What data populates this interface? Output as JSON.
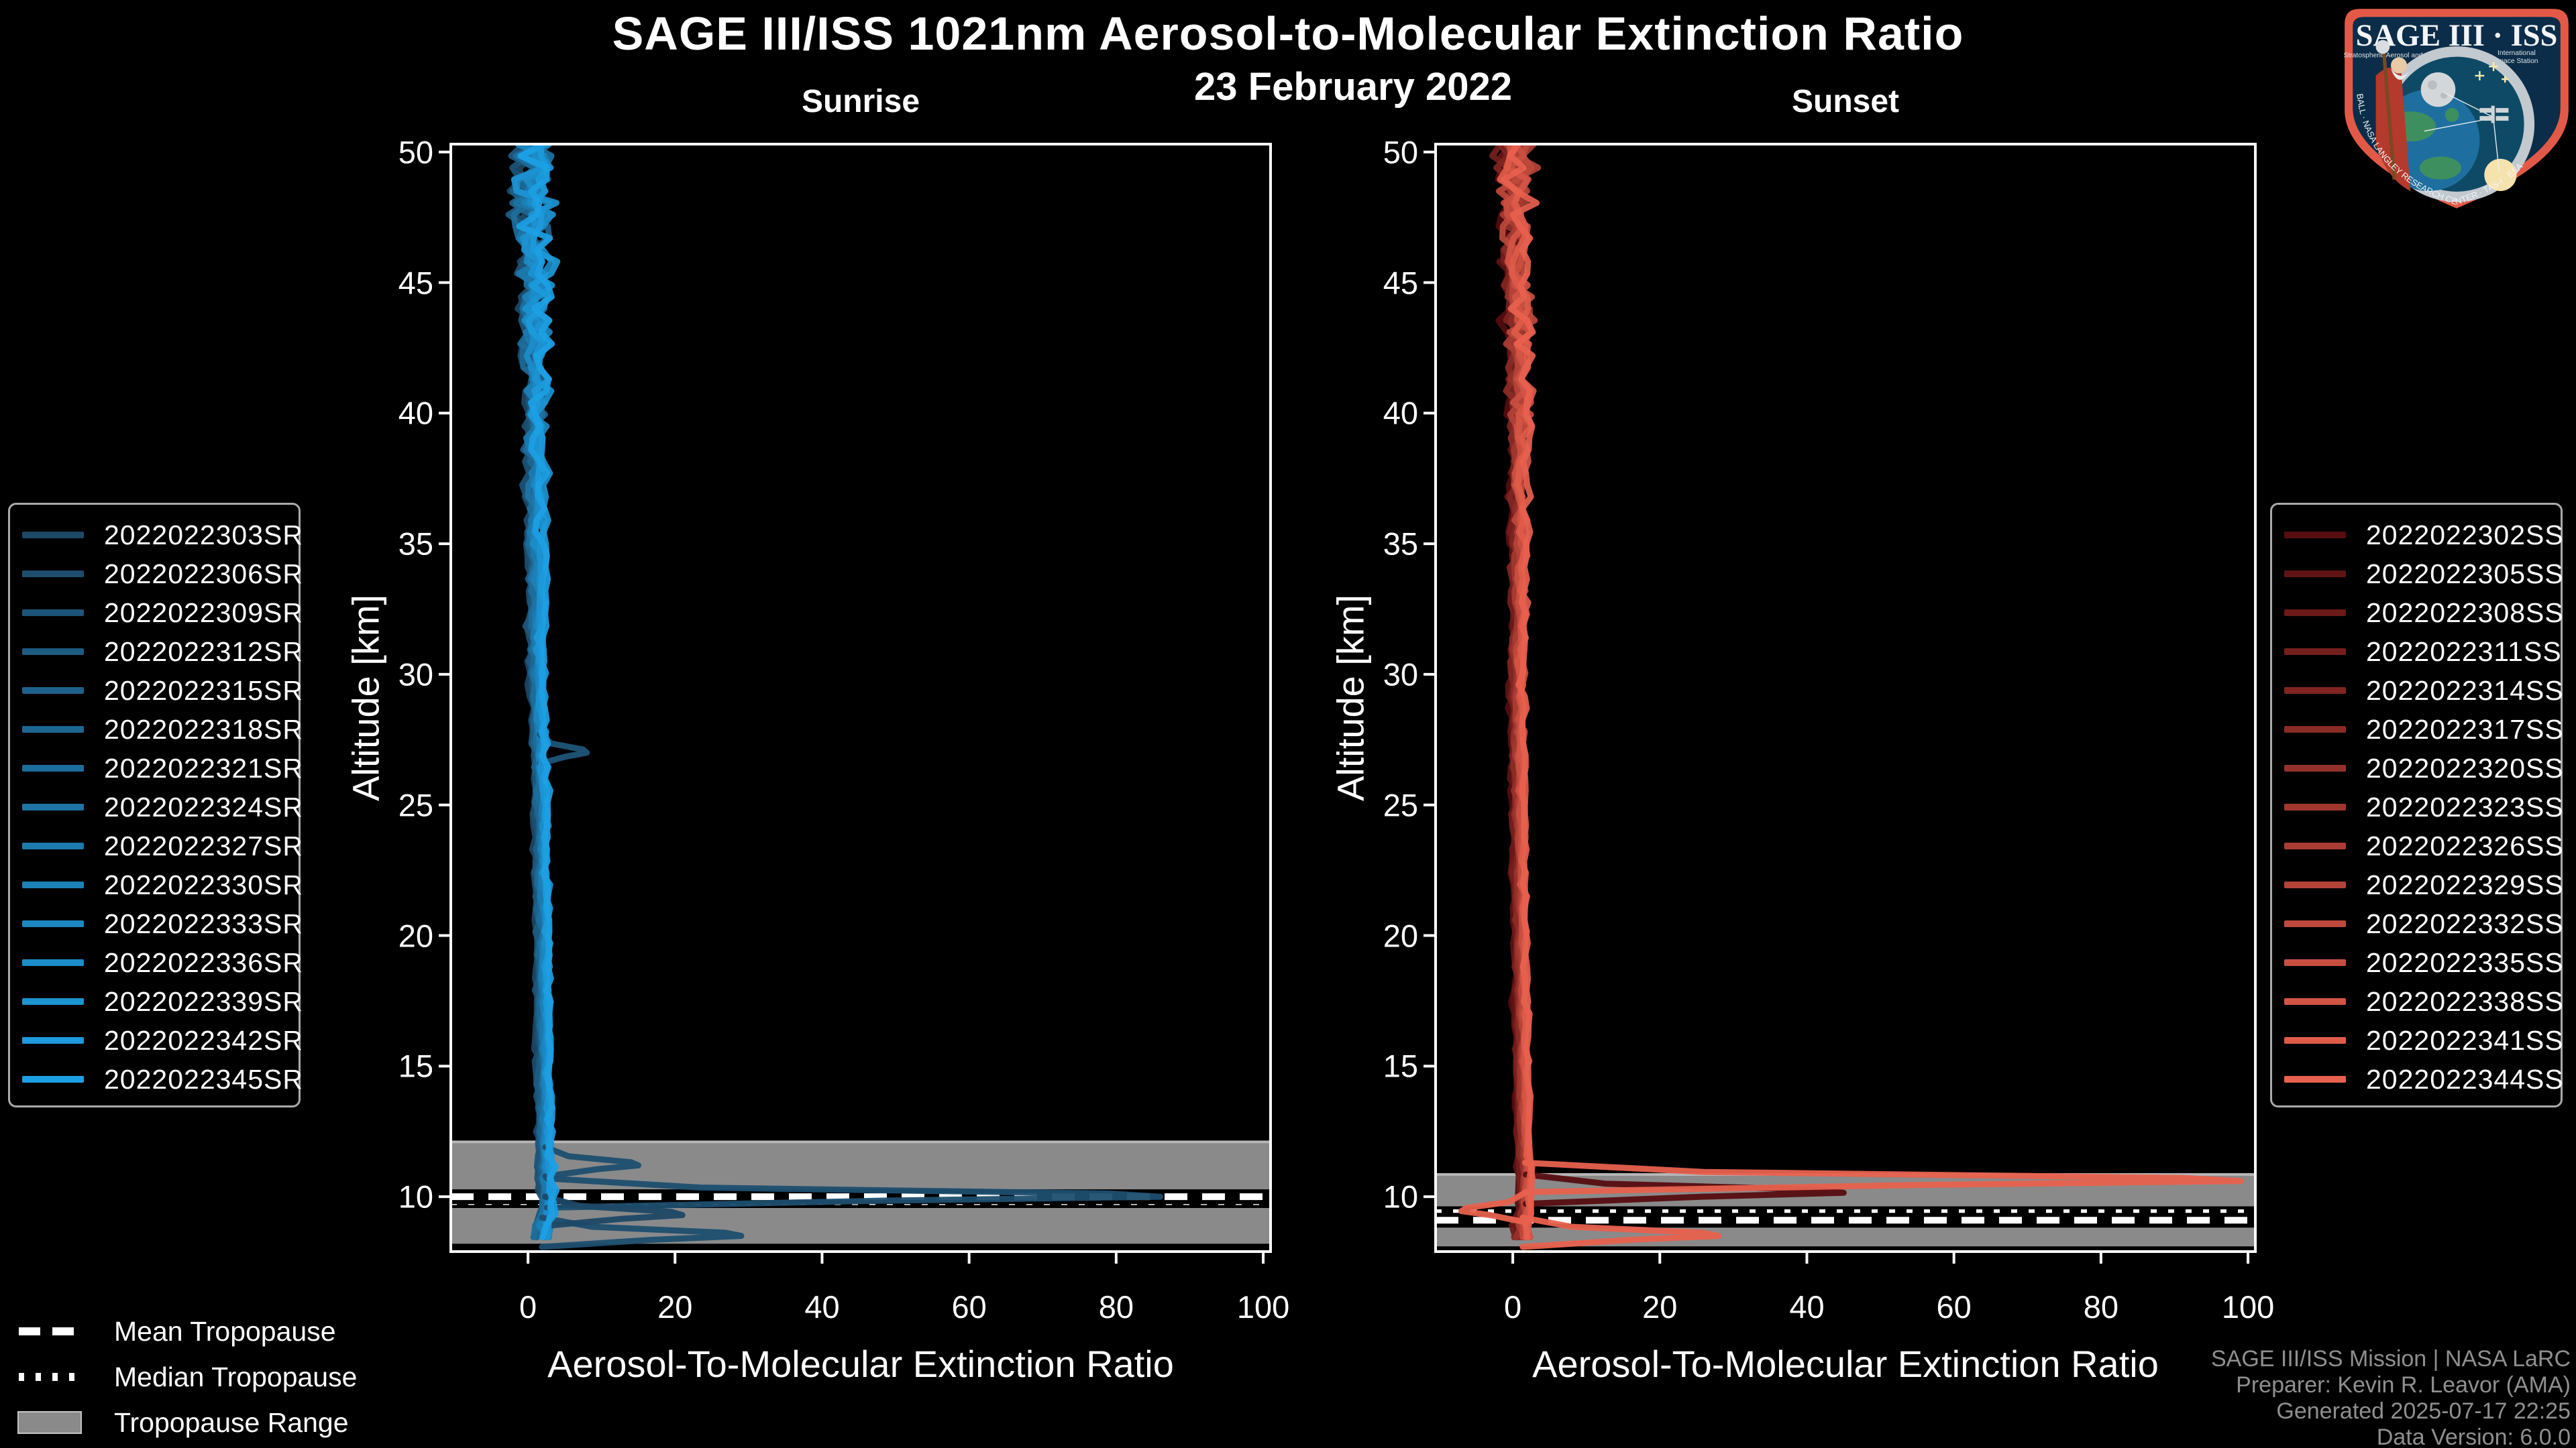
{
  "header": {
    "title": "SAGE III/ISS 1021nm Aerosol-to-Molecular Extinction Ratio",
    "date": "23 February 2022"
  },
  "tropopause_legend": {
    "mean_label": "Mean Tropopause",
    "median_label": "Median Tropopause",
    "range_label": "Tropopause Range"
  },
  "footer": {
    "line1": "SAGE III/ISS Mission | NASA LaRC",
    "line2": "Preparer: Kevin R. Leavor (AMA)",
    "line3": "Generated 2025-07-17 22:25",
    "line4": "Data Version: 6.0.0"
  },
  "logo": {
    "line1": "SAGE III · ISS",
    "sub_left": "Stratospheric Aerosol and Gas Experiment III",
    "sub_right1": "International",
    "sub_right2": "Space Station",
    "ring_text": "BALL · NASA LANGLEY RESEARCH CENTER · TAS-I · ESA"
  },
  "colors": {
    "background": "#000000",
    "text": "#ffffff",
    "muted_text": "#8f8f8f",
    "band": "#8a8a8a",
    "band_edge": "#b5b5b5",
    "sunrise_dark": "#1d4866",
    "sunrise_bright": "#1ca0e4",
    "sunset_dark": "#560d10",
    "sunset_bright": "#e8614e",
    "tropopause_line": "#ffffff",
    "logo_border": "#e25a47"
  },
  "chart_data": [
    {
      "type": "line",
      "panel": "sunrise",
      "title": "Sunrise",
      "xlabel": "Aerosol-To-Molecular Extinction Ratio",
      "ylabel": "Altitude [km]",
      "xlim": [
        -10.5,
        101
      ],
      "ylim": [
        7.9,
        50.3
      ],
      "x_ticks": [
        0,
        20,
        40,
        60,
        80,
        100
      ],
      "y_ticks": [
        10,
        15,
        20,
        25,
        30,
        35,
        40,
        45,
        50
      ],
      "grid": false,
      "legend_position": "outside-left",
      "series_names": [
        "2022022303SR",
        "2022022306SR",
        "2022022309SR",
        "2022022312SR",
        "2022022315SR",
        "2022022318SR",
        "2022022321SR",
        "2022022324SR",
        "2022022327SR",
        "2022022330SR",
        "2022022333SR",
        "2022022336SR",
        "2022022339SR",
        "2022022342SR",
        "2022022345SR"
      ],
      "typical_profile": {
        "altitude_km": [
          50,
          45,
          40,
          35,
          30,
          27,
          25,
          20,
          15,
          12,
          10,
          9,
          8
        ],
        "ratio": [
          0.3,
          0.8,
          1.0,
          1.0,
          1.2,
          1.6,
          1.8,
          2.0,
          2.2,
          2.2,
          2.6,
          2.2,
          1.6
        ]
      },
      "noise_amplitude": {
        "altitude_km": [
          50,
          47,
          44,
          40,
          34,
          28,
          12,
          8
        ],
        "ratio": [
          3.6,
          3.2,
          2.4,
          1.7,
          1.0,
          0.7,
          0.55,
          1.0
        ]
      },
      "features": [
        {
          "series": "2022022306SR",
          "altitude_km": 10.0,
          "peak_ratio": 86
        },
        {
          "series": "2022022306SR",
          "altitude_km": 11.2,
          "peak_ratio": 15
        },
        {
          "series": "2022022306SR",
          "altitude_km": 8.5,
          "peak_ratio": 29
        },
        {
          "series": "2022022303SR",
          "altitude_km": 9.3,
          "peak_ratio": 21
        },
        {
          "series": "2022022309SR",
          "altitude_km": 27.0,
          "peak_ratio": 8
        }
      ],
      "tropopause": {
        "mean_km": 10.0,
        "median_km": 9.8,
        "range_km": [
          8.2,
          12.1
        ]
      }
    },
    {
      "type": "line",
      "panel": "sunset",
      "title": "Sunset",
      "xlabel": "Aerosol-To-Molecular Extinction Ratio",
      "ylabel": "Altitude [km]",
      "xlim": [
        -10.5,
        101
      ],
      "ylim": [
        7.9,
        50.3
      ],
      "x_ticks": [
        0,
        20,
        40,
        60,
        80,
        100
      ],
      "y_ticks": [
        10,
        15,
        20,
        25,
        30,
        35,
        40,
        45,
        50
      ],
      "grid": false,
      "legend_position": "outside-right",
      "series_names": [
        "2022022302SS",
        "2022022305SS",
        "2022022308SS",
        "2022022311SS",
        "2022022314SS",
        "2022022317SS",
        "2022022320SS",
        "2022022323SS",
        "2022022326SS",
        "2022022329SS",
        "2022022332SS",
        "2022022335SS",
        "2022022338SS",
        "2022022341SS",
        "2022022344SS"
      ],
      "typical_profile": {
        "altitude_km": [
          50,
          45,
          40,
          35,
          30,
          25,
          20,
          15,
          12,
          10,
          9,
          8
        ],
        "ratio": [
          0.2,
          0.5,
          0.8,
          0.8,
          0.6,
          0.8,
          1.0,
          1.2,
          1.4,
          1.8,
          1.5,
          1.2
        ]
      },
      "noise_amplitude": {
        "altitude_km": [
          50,
          47,
          44,
          40,
          34,
          28,
          12,
          8
        ],
        "ratio": [
          3.2,
          2.8,
          2.2,
          1.5,
          0.9,
          0.65,
          0.5,
          0.9
        ]
      },
      "features": [
        {
          "series": "2022022344SS",
          "altitude_km": 10.6,
          "peak_ratio": 99
        },
        {
          "series": "2022022302SS",
          "altitude_km": 10.15,
          "peak_ratio": 45
        },
        {
          "series": "2022022344SS",
          "altitude_km": 8.5,
          "peak_ratio": 28
        },
        {
          "series": "2022022344SS",
          "altitude_km": 9.45,
          "peak_ratio": -7
        }
      ],
      "tropopause": {
        "mean_km": 9.1,
        "median_km": 9.4,
        "range_km": [
          8.1,
          10.85
        ]
      }
    }
  ]
}
